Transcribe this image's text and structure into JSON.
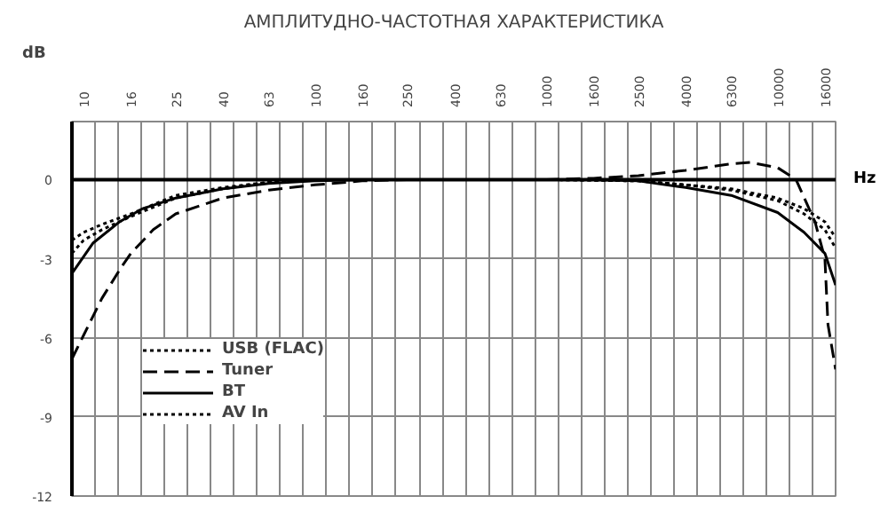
{
  "chart_data": {
    "type": "line",
    "title": "АМПЛИТУДНО-ЧАСТОТНАЯ ХАРАКТЕРИСТИКА",
    "xlabel": "Hz",
    "ylabel": "dB",
    "log": "x",
    "xlim": [
      8.9,
      17800
    ],
    "ylim": [
      -12,
      2.2
    ],
    "xticks": [
      {
        "value": 10,
        "label": "10"
      },
      {
        "value": 16,
        "label": "16"
      },
      {
        "value": 25,
        "label": "25"
      },
      {
        "value": 40,
        "label": "40"
      },
      {
        "value": 63,
        "label": "63"
      },
      {
        "value": 100,
        "label": "100"
      },
      {
        "value": 160,
        "label": "160"
      },
      {
        "value": 250,
        "label": "250"
      },
      {
        "value": 400,
        "label": "400"
      },
      {
        "value": 630,
        "label": "630"
      },
      {
        "value": 1000,
        "label": "1000"
      },
      {
        "value": 1600,
        "label": "1600"
      },
      {
        "value": 2500,
        "label": "2500"
      },
      {
        "value": 4000,
        "label": "4000"
      },
      {
        "value": 6300,
        "label": "6300"
      },
      {
        "value": 10000,
        "label": "10000"
      },
      {
        "value": 16000,
        "label": "16000"
      },
      {
        "value": 11.2,
        "label": null
      },
      {
        "value": 14.1,
        "label": null
      },
      {
        "value": 17.8,
        "label": null
      },
      {
        "value": 22.4,
        "label": null
      },
      {
        "value": 28.2,
        "label": null
      },
      {
        "value": 35.5,
        "label": null
      },
      {
        "value": 44.7,
        "label": null
      },
      {
        "value": 56.2,
        "label": null
      },
      {
        "value": 70.8,
        "label": null
      },
      {
        "value": 89.1,
        "label": null
      },
      {
        "value": 112,
        "label": null
      },
      {
        "value": 141,
        "label": null
      },
      {
        "value": 178,
        "label": null
      },
      {
        "value": 224,
        "label": null
      },
      {
        "value": 282,
        "label": null
      },
      {
        "value": 355,
        "label": null
      },
      {
        "value": 447,
        "label": null
      },
      {
        "value": 562,
        "label": null
      },
      {
        "value": 708,
        "label": null
      },
      {
        "value": 891,
        "label": null
      },
      {
        "value": 1122,
        "label": null
      },
      {
        "value": 1413,
        "label": null
      },
      {
        "value": 1778,
        "label": null
      },
      {
        "value": 2239,
        "label": null
      },
      {
        "value": 2818,
        "label": null
      },
      {
        "value": 3548,
        "label": null
      },
      {
        "value": 4467,
        "label": null
      },
      {
        "value": 5623,
        "label": null
      },
      {
        "value": 7079,
        "label": null
      },
      {
        "value": 8913,
        "label": null
      },
      {
        "value": 11220,
        "label": null
      },
      {
        "value": 14125,
        "label": null
      }
    ],
    "yticks": [
      0,
      -3,
      -6,
      -9,
      -12
    ],
    "grid": true,
    "legend": "bottom left",
    "series": [
      {
        "name": "USB (FLAC)",
        "color": "#000000",
        "line_style": "dotted",
        "x": [
          8.9,
          10,
          12,
          16,
          25,
          40,
          63,
          100,
          250,
          1000,
          2500,
          4000,
          6300,
          10000,
          13000,
          16000,
          17800
        ],
        "values": [
          -2.3,
          -2.0,
          -1.7,
          -1.3,
          -0.6,
          -0.3,
          -0.1,
          0,
          0,
          0,
          -0.05,
          -0.2,
          -0.4,
          -0.8,
          -1.3,
          -1.9,
          -2.6
        ]
      },
      {
        "name": "Tuner",
        "color": "#000000",
        "line_style": "dashed",
        "x": [
          8.9,
          10,
          12,
          14.6,
          16,
          20,
          25,
          40,
          63,
          100,
          160,
          250,
          1000,
          1600,
          2500,
          4000,
          6300,
          7600,
          10000,
          12000,
          14500,
          16000,
          16500,
          17800
        ],
        "values": [
          -6.8,
          -5.9,
          -4.5,
          -3.3,
          -2.8,
          -1.9,
          -1.3,
          -0.7,
          -0.4,
          -0.2,
          -0.05,
          0,
          0,
          0.05,
          0.15,
          0.35,
          0.6,
          0.65,
          0.45,
          0,
          -1.6,
          -3,
          -5.5,
          -7.2
        ]
      },
      {
        "name": "BT",
        "color": "#000000",
        "line_style": "solid",
        "x": [
          8.9,
          11,
          14.3,
          18,
          25,
          40,
          63,
          100,
          160,
          1600,
          2500,
          4000,
          6300,
          10000,
          13000,
          16000,
          17800
        ],
        "values": [
          -3.56,
          -2.4,
          -1.6,
          -1.1,
          -0.7,
          -0.35,
          -0.15,
          -0.05,
          0,
          0,
          -0.05,
          -0.3,
          -0.6,
          -1.25,
          -2.0,
          -2.8,
          -4.0
        ]
      },
      {
        "name": "AV In",
        "color": "#000000",
        "line_style": "dotted",
        "x": [
          8.9,
          10,
          12,
          16,
          25,
          40,
          63,
          100,
          250,
          1000,
          2500,
          4000,
          6300,
          10000,
          13000,
          16000,
          17800
        ],
        "values": [
          -2.8,
          -2.3,
          -1.9,
          -1.4,
          -0.7,
          -0.35,
          -0.1,
          0,
          0,
          0,
          -0.05,
          -0.2,
          -0.35,
          -0.7,
          -1.1,
          -1.6,
          -2.2
        ]
      }
    ]
  }
}
